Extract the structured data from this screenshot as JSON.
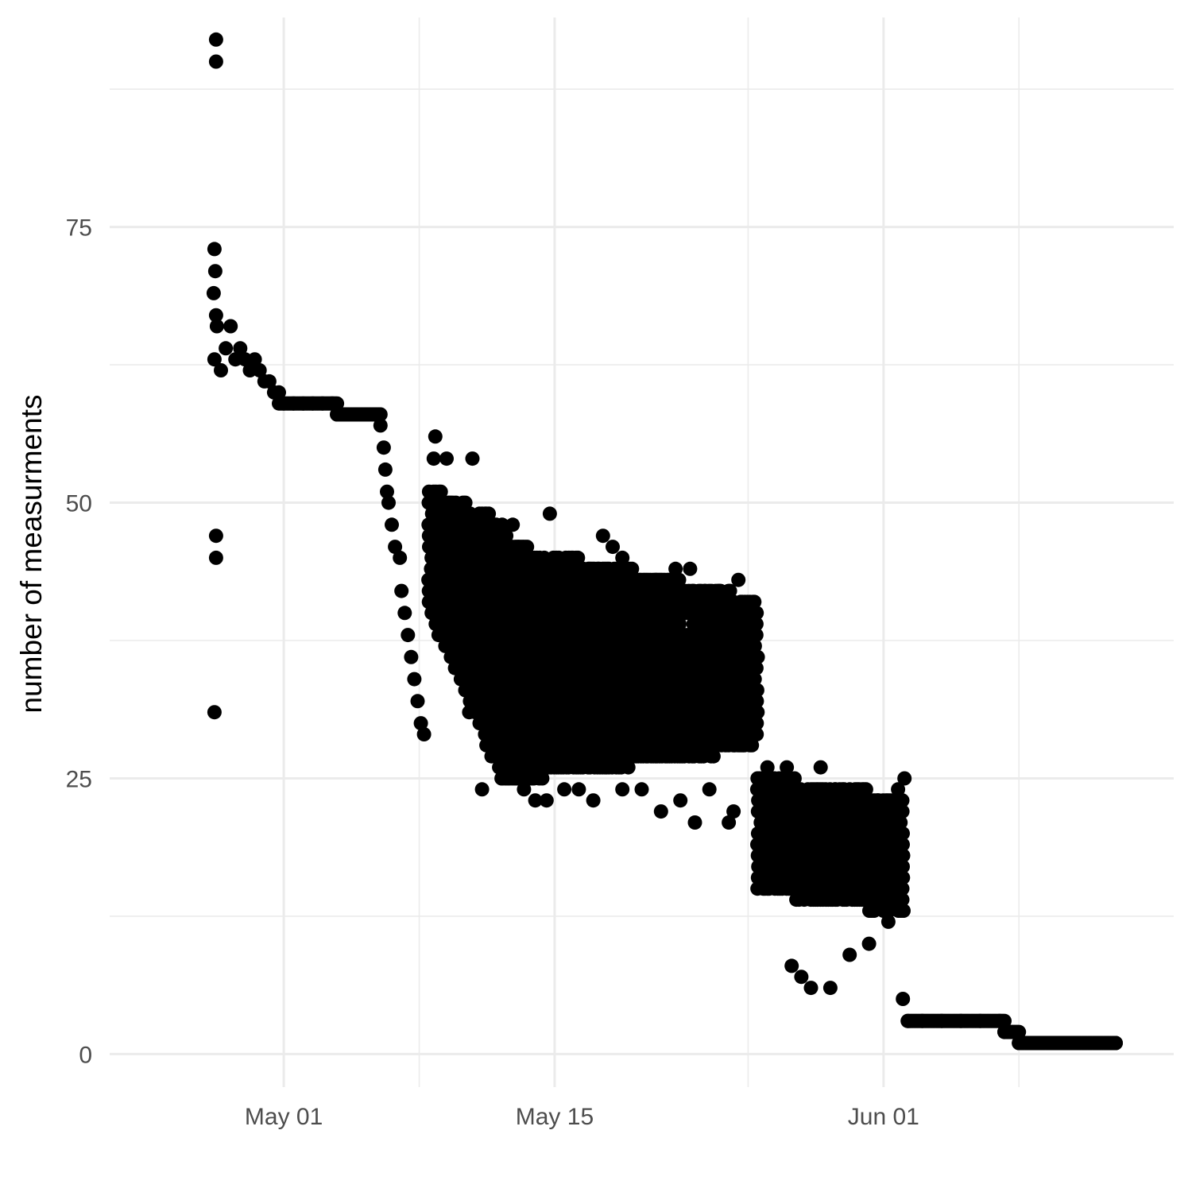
{
  "chart_data": {
    "type": "scatter",
    "title": "",
    "xlabel": "",
    "ylabel": "number of measurments",
    "x_axis": {
      "type": "date",
      "range": [
        "2024-04-22",
        "2024-06-16"
      ],
      "major_breaks": [
        "2024-05-01",
        "2024-05-15",
        "2024-06-01"
      ],
      "tick_labels": [
        "May 01",
        "May 15",
        "Jun 01"
      ],
      "minor_breaks": [
        "2024-05-08",
        "2024-05-25",
        "2024-06-08"
      ]
    },
    "y_axis": {
      "range": [
        -3,
        94
      ],
      "major_breaks": [
        0,
        25,
        50,
        75
      ],
      "tick_labels": [
        "0",
        "25",
        "50",
        "75"
      ],
      "minor_breaks": [
        12.5,
        37.5,
        62.5,
        87.5
      ]
    },
    "grid": true,
    "legend": "none",
    "point_color": "#000000",
    "series": [
      {
        "points": [
          [
            "2024-04-27T12:00",
            92
          ],
          [
            "2024-04-27T12:00",
            90
          ],
          [
            "2024-04-27T12:00",
            47
          ],
          [
            "2024-04-27T12:00",
            45
          ],
          [
            "2024-04-27T10:00",
            31
          ],
          [
            "2024-04-27T10:00",
            73
          ],
          [
            "2024-04-27T11:00",
            71
          ],
          [
            "2024-04-27T09:00",
            69
          ],
          [
            "2024-04-27T12:00",
            67
          ],
          [
            "2024-04-27T13:00",
            66
          ],
          [
            "2024-04-27T10:00",
            63
          ],
          [
            "2024-04-27T18:00",
            62
          ],
          [
            "2024-04-28T00:00",
            64
          ],
          [
            "2024-04-28T06:00",
            66
          ],
          [
            "2024-04-28T12:00",
            63
          ],
          [
            "2024-04-28T18:00",
            64
          ],
          [
            "2024-04-29T00:00",
            63
          ],
          [
            "2024-04-29T06:00",
            62
          ],
          [
            "2024-04-29T12:00",
            63
          ],
          [
            "2024-04-29T18:00",
            62
          ],
          [
            "2024-04-30T00:00",
            61
          ],
          [
            "2024-04-30T06:00",
            61
          ],
          [
            "2024-04-30T12:00",
            60
          ],
          [
            "2024-04-30T18:00",
            60
          ],
          [
            "2024-05-01T00:00",
            59
          ],
          [
            "2024-05-01T12:00",
            59
          ],
          [
            "2024-05-02T00:00",
            59
          ],
          [
            "2024-05-02T12:00",
            59
          ],
          [
            "2024-05-03T00:00",
            59
          ],
          [
            "2024-05-03T12:00",
            59
          ],
          [
            "2024-05-03T18:00",
            58
          ],
          [
            "2024-05-04T06:00",
            58
          ],
          [
            "2024-05-04T18:00",
            58
          ],
          [
            "2024-05-05T06:00",
            58
          ],
          [
            "2024-05-05T18:00",
            58
          ],
          [
            "2024-05-06T00:00",
            57
          ],
          [
            "2024-05-06T04:00",
            55
          ],
          [
            "2024-05-06T06:00",
            53
          ],
          [
            "2024-05-06T08:00",
            51
          ],
          [
            "2024-05-06T10:00",
            50
          ],
          [
            "2024-05-06T14:00",
            48
          ],
          [
            "2024-05-06T18:00",
            46
          ],
          [
            "2024-05-07T00:00",
            45
          ],
          [
            "2024-05-07T02:00",
            42
          ],
          [
            "2024-05-07T06:00",
            40
          ],
          [
            "2024-05-07T10:00",
            38
          ],
          [
            "2024-05-07T14:00",
            36
          ],
          [
            "2024-05-07T18:00",
            34
          ],
          [
            "2024-05-07T22:00",
            32
          ],
          [
            "2024-05-08T02:00",
            30
          ],
          [
            "2024-05-08T06:00",
            29
          ],
          [
            "2024-05-08T20:00",
            56
          ],
          [
            "2024-05-08T18:00",
            54
          ],
          [
            "2024-05-09T10:00",
            54
          ],
          [
            "2024-05-10T18:00",
            54
          ],
          [
            "2024-05-12T20:00",
            48
          ],
          [
            "2024-05-12T12:00",
            47
          ],
          [
            "2024-05-14T18:00",
            49
          ],
          [
            "2024-05-09T00:00",
            38
          ],
          [
            "2024-05-09T10:00",
            37
          ],
          [
            "2024-05-10T14:00",
            31
          ],
          [
            "2024-05-11T06:00",
            24
          ],
          [
            "2024-05-13T00:00",
            25
          ],
          [
            "2024-05-13T10:00",
            24
          ],
          [
            "2024-05-14T00:00",
            23
          ],
          [
            "2024-05-14T14:00",
            23
          ],
          [
            "2024-05-15T12:00",
            24
          ],
          [
            "2024-05-16T06:00",
            24
          ],
          [
            "2024-05-17T00:00",
            23
          ],
          [
            "2024-05-17T12:00",
            47
          ],
          [
            "2024-05-18T00:00",
            46
          ],
          [
            "2024-05-18T12:00",
            45
          ],
          [
            "2024-05-19T00:00",
            44
          ],
          [
            "2024-05-18T12:00",
            24
          ],
          [
            "2024-05-19T12:00",
            24
          ],
          [
            "2024-05-20T06:00",
            43
          ],
          [
            "2024-05-20T12:00",
            22
          ],
          [
            "2024-05-21T06:00",
            44
          ],
          [
            "2024-05-21T12:00",
            23
          ],
          [
            "2024-05-22T00:00",
            44
          ],
          [
            "2024-05-22T06:00",
            21
          ],
          [
            "2024-05-23T00:00",
            24
          ],
          [
            "2024-05-23T12:00",
            42
          ],
          [
            "2024-05-24T00:00",
            21
          ],
          [
            "2024-05-24T06:00",
            22
          ],
          [
            "2024-05-24T12:00",
            43
          ],
          [
            "2024-05-25T06:00",
            41
          ],
          [
            "2024-05-25T12:00",
            36
          ],
          [
            "2024-05-26T00:00",
            26
          ],
          [
            "2024-05-26T06:00",
            16
          ],
          [
            "2024-05-27T00:00",
            26
          ],
          [
            "2024-05-27T06:00",
            8
          ],
          [
            "2024-05-27T18:00",
            7
          ],
          [
            "2024-05-28T06:00",
            6
          ],
          [
            "2024-05-28T18:00",
            26
          ],
          [
            "2024-05-29T06:00",
            6
          ],
          [
            "2024-05-29T12:00",
            24
          ],
          [
            "2024-05-30T06:00",
            9
          ],
          [
            "2024-05-30T18:00",
            23
          ],
          [
            "2024-05-31T06:00",
            10
          ],
          [
            "2024-05-31T18:00",
            23
          ],
          [
            "2024-06-01T06:00",
            12
          ],
          [
            "2024-06-01T18:00",
            24
          ],
          [
            "2024-06-02T00:00",
            5
          ],
          [
            "2024-06-02T02:00",
            25
          ],
          [
            "2024-06-02T06:00",
            3
          ],
          [
            "2024-06-03T00:00",
            3
          ],
          [
            "2024-06-04T00:00",
            3
          ],
          [
            "2024-06-05T00:00",
            3
          ],
          [
            "2024-06-06T00:00",
            3
          ],
          [
            "2024-06-07T00:00",
            3
          ],
          [
            "2024-06-07T06:00",
            2
          ],
          [
            "2024-06-08T00:00",
            1
          ],
          [
            "2024-06-09T00:00",
            1
          ],
          [
            "2024-06-10T00:00",
            1
          ],
          [
            "2024-06-11T00:00",
            1
          ],
          [
            "2024-06-12T00:00",
            1
          ],
          [
            "2024-06-13T00:00",
            1
          ]
        ],
        "dense_bands": [
          {
            "from": "2024-05-08T12:00",
            "to": "2024-05-12T08:00",
            "y_start": [
              41,
              51
            ],
            "y_end": [
              25,
              48
            ]
          },
          {
            "from": "2024-05-12T08:00",
            "to": "2024-05-25T12:00",
            "y_start": [
              25,
              46
            ],
            "y_end": [
              28,
              41
            ]
          },
          {
            "from": "2024-05-25T12:00",
            "to": "2024-06-02T00:00",
            "y_start": [
              15,
              25
            ],
            "y_end": [
              13,
              23
            ]
          }
        ]
      }
    ]
  }
}
